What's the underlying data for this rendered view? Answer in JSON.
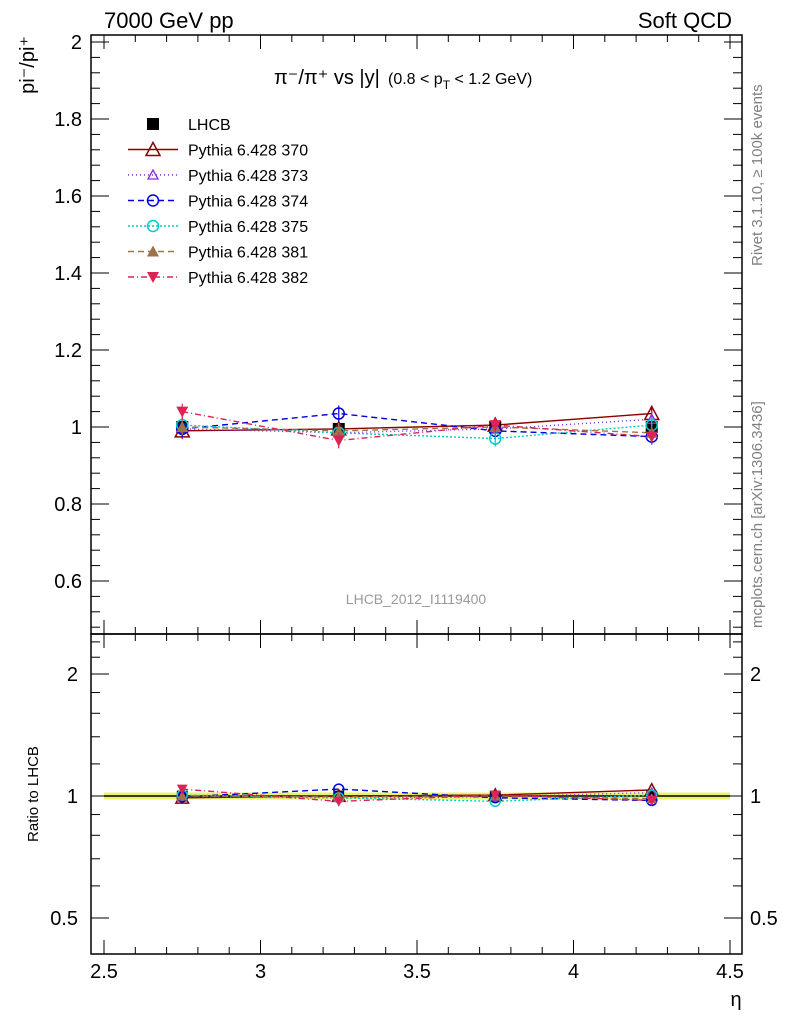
{
  "header": {
    "left": "7000 GeV pp",
    "right": "Soft QCD"
  },
  "side_labels": {
    "rivet": "Rivet 3.1.10, ≥ 100k events",
    "mcplots": "mcplots.cern.ch [arXiv:1306.3436]"
  },
  "chart_data": {
    "type": "line",
    "title": "π⁻/π⁺ vs |y|",
    "title_range": "(0.8 < p",
    "title_range_sub": "T",
    "title_range_end": " < 1.2 GeV)",
    "watermark": "LHCB_2012_I1119400",
    "ylabel": "pi⁻/pi⁺",
    "ratio_ylabel": "Ratio to LHCB",
    "xlabel": "η",
    "xlim": [
      2.45,
      4.5
    ],
    "ylim": [
      0.48,
      2.03
    ],
    "ratio_ylim": [
      0.4,
      2.4
    ],
    "x_ticks": [
      "2.5",
      "3",
      "3.5",
      "4",
      "4.5"
    ],
    "y_ticks": [
      "0.6",
      "0.8",
      "1",
      "1.2",
      "1.4",
      "1.6",
      "1.8",
      "2"
    ],
    "ratio_y_ticks": [
      "0.5",
      "1",
      "2"
    ],
    "x": [
      2.75,
      3.25,
      3.75,
      4.25
    ],
    "legend_position": "top-left",
    "series": [
      {
        "name": "LHCB",
        "values": [
          1.0,
          0.995,
          1.0,
          1.0
        ],
        "color": "#000000",
        "marker": "square",
        "dash": "none",
        "is_data": true
      },
      {
        "name": "Pythia 6.428 370",
        "values": [
          0.99,
          0.995,
          1.005,
          1.035
        ],
        "color": "#8b0000",
        "marker": "triangle-open",
        "dash": "none"
      },
      {
        "name": "Pythia 6.428 373",
        "values": [
          0.995,
          0.985,
          0.995,
          1.02
        ],
        "color": "#8a2be2",
        "marker": "triangle-open-small",
        "dash": "1,3"
      },
      {
        "name": "Pythia 6.428 374",
        "values": [
          0.995,
          1.035,
          0.99,
          0.975
        ],
        "color": "#0000dd",
        "marker": "circle-open",
        "dash": "6,4"
      },
      {
        "name": "Pythia 6.428 375",
        "values": [
          1.005,
          0.985,
          0.97,
          1.005
        ],
        "color": "#00cccc",
        "marker": "circle-open",
        "dash": "2,2"
      },
      {
        "name": "Pythia 6.428 381",
        "values": [
          1.0,
          0.99,
          1.0,
          0.985
        ],
        "color": "#a0724a",
        "marker": "triangle-filled",
        "dash": "6,4"
      },
      {
        "name": "Pythia 6.428 382",
        "values": [
          1.04,
          0.965,
          1.005,
          0.975
        ],
        "color": "#dd2255",
        "marker": "triangle-down-filled",
        "dash": "6,3,1,3"
      }
    ]
  }
}
